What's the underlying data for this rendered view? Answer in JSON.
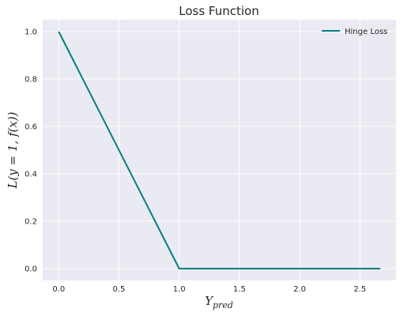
{
  "chart_data": {
    "type": "line",
    "title": "Loss Function",
    "xlabel_main": "Y",
    "xlabel_sub": "pred",
    "ylabel": "L(y = 1, f(x))",
    "xlim": [
      -0.133,
      2.8
    ],
    "ylim": [
      -0.05,
      1.05
    ],
    "xticks": [
      0.0,
      0.5,
      1.0,
      1.5,
      2.0,
      2.5
    ],
    "xtick_labels": [
      "0.0",
      "0.5",
      "1.0",
      "1.5",
      "2.0",
      "2.5"
    ],
    "yticks": [
      0.0,
      0.2,
      0.4,
      0.6,
      0.8,
      1.0
    ],
    "ytick_labels": [
      "0.0",
      "0.2",
      "0.4",
      "0.6",
      "0.8",
      "1.0"
    ],
    "grid": true,
    "legend_position": "top-right",
    "series": [
      {
        "name": "Hinge Loss",
        "color": "#008080",
        "x": [
          0.0,
          1.0,
          2.67
        ],
        "y": [
          1.0,
          0.0,
          0.0
        ]
      }
    ]
  }
}
